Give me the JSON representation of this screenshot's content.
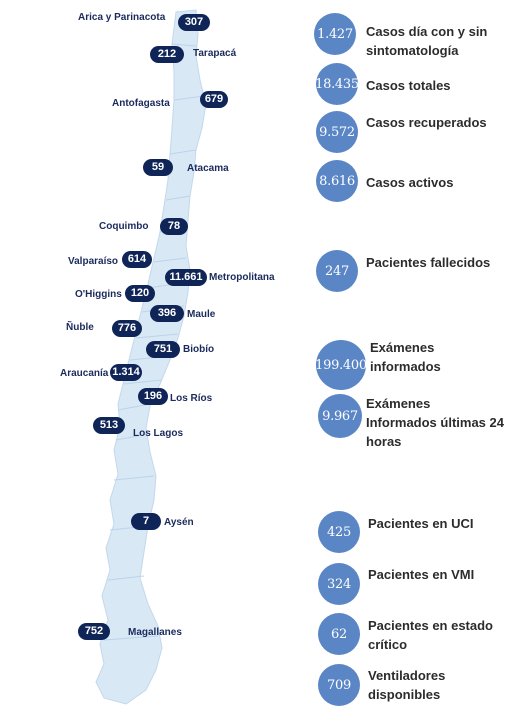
{
  "map": {
    "regions": [
      {
        "id": "arica",
        "name": "Arica y Parinacota",
        "value": "307"
      },
      {
        "id": "tarapaca",
        "name": "Tarapacá",
        "value": "212"
      },
      {
        "id": "antofagasta",
        "name": "Antofagasta",
        "value": "679"
      },
      {
        "id": "atacama",
        "name": "Atacama",
        "value": "59"
      },
      {
        "id": "coquimbo",
        "name": "Coquimbo",
        "value": "78"
      },
      {
        "id": "valparaiso",
        "name": "Valparaíso",
        "value": "614"
      },
      {
        "id": "metropolitana",
        "name": "Metropolitana",
        "value": "11.661"
      },
      {
        "id": "ohiggins",
        "name": "O'Higgins",
        "value": "120"
      },
      {
        "id": "maule",
        "name": "Maule",
        "value": "396"
      },
      {
        "id": "nuble",
        "name": "Ñuble",
        "value": "776"
      },
      {
        "id": "biobio",
        "name": "Biobío",
        "value": "751"
      },
      {
        "id": "araucania",
        "name": "Araucanía",
        "value": "1.314"
      },
      {
        "id": "losrios",
        "name": "Los Ríos",
        "value": "196"
      },
      {
        "id": "loslagos",
        "name": "Los Lagos",
        "value": "513"
      },
      {
        "id": "aysen",
        "name": "Aysén",
        "value": "7"
      },
      {
        "id": "magallanes",
        "name": "Magallanes",
        "value": "752"
      }
    ]
  },
  "stats": [
    {
      "id": "casos-dia",
      "value": "1.427",
      "label": "Casos día con y sin sintomatología"
    },
    {
      "id": "casos-totales",
      "value": "18.435",
      "label": "Casos totales"
    },
    {
      "id": "casos-recuperados",
      "value": "9.572",
      "label": "Casos recuperados"
    },
    {
      "id": "casos-activos",
      "value": "8.616",
      "label": "Casos activos"
    },
    {
      "id": "fallecidos",
      "value": "247",
      "label": "Pacientes fallecidos"
    },
    {
      "id": "examenes",
      "value": "199.400",
      "label": "Exámenes informados"
    },
    {
      "id": "examenes-24h",
      "value": "9.967",
      "label": "Exámenes Informados últimas 24 horas"
    },
    {
      "id": "uci",
      "value": "425",
      "label": "Pacientes en UCI"
    },
    {
      "id": "vmi",
      "value": "324",
      "label": "Pacientes en VMI"
    },
    {
      "id": "critico",
      "value": "62",
      "label": "Pacientes en estado crítico"
    },
    {
      "id": "ventiladores",
      "value": "709",
      "label": "Ventiladores disponibles"
    }
  ],
  "colors": {
    "pill": "#0f2557",
    "circle": "#5a86c6",
    "map": "#d6e6f4"
  }
}
